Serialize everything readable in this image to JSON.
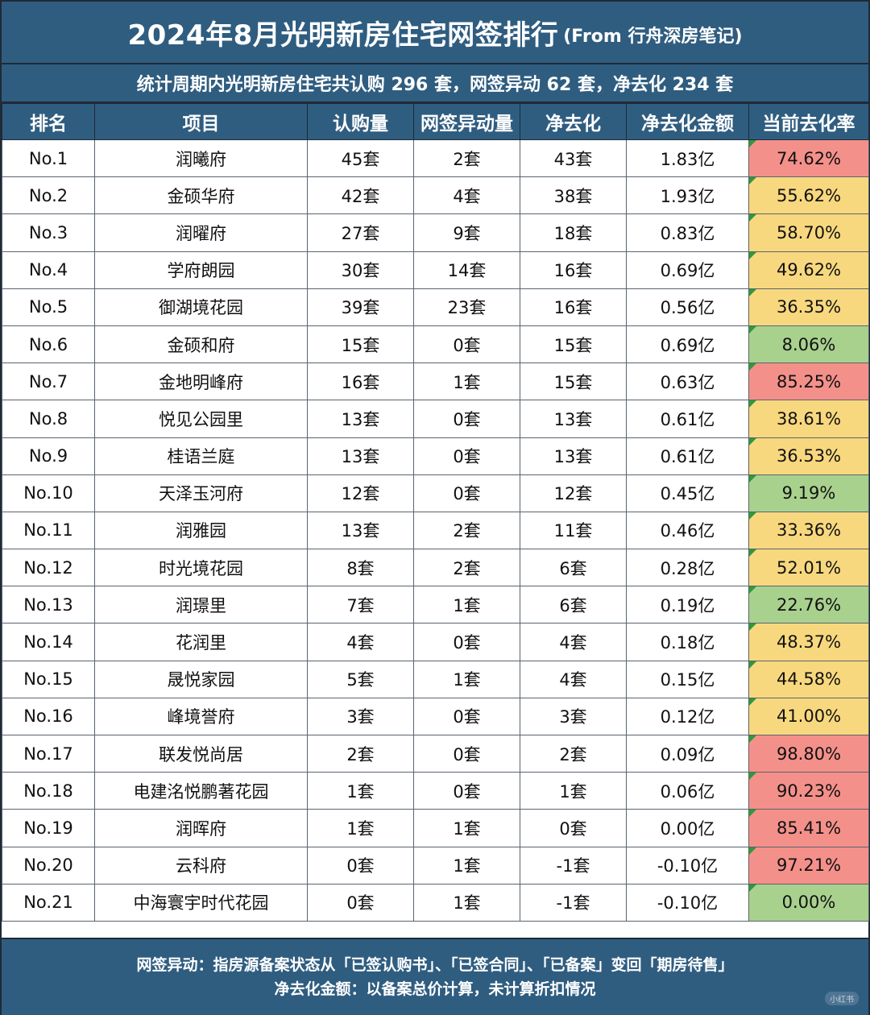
{
  "title": "2024年8月光明新房住宅网签排行",
  "subtitle": "(From 行舟深房笔记)",
  "summary": "统计周期内光明新房住宅共认购 296 套，网签异动 62 套，净去化 234 套",
  "columns": [
    "排名",
    "项目",
    "认购量",
    "网签异动量",
    "净去化",
    "净去化金额",
    "当前去化率"
  ],
  "colors": {
    "red": "#f4908a",
    "yellow": "#f8d87e",
    "green": "#a9d18e",
    "header": "#2f5d80"
  },
  "rows": [
    {
      "rank": "No.1",
      "project": "润曦府",
      "subscribed": "45套",
      "change": "2套",
      "net": "43套",
      "amount": "1.83亿",
      "rate": "74.62%",
      "level": "red"
    },
    {
      "rank": "No.2",
      "project": "金硕华府",
      "subscribed": "42套",
      "change": "4套",
      "net": "38套",
      "amount": "1.93亿",
      "rate": "55.62%",
      "level": "yellow"
    },
    {
      "rank": "No.3",
      "project": "润曜府",
      "subscribed": "27套",
      "change": "9套",
      "net": "18套",
      "amount": "0.83亿",
      "rate": "58.70%",
      "level": "yellow"
    },
    {
      "rank": "No.4",
      "project": "学府朗园",
      "subscribed": "30套",
      "change": "14套",
      "net": "16套",
      "amount": "0.69亿",
      "rate": "49.62%",
      "level": "yellow"
    },
    {
      "rank": "No.5",
      "project": "御湖境花园",
      "subscribed": "39套",
      "change": "23套",
      "net": "16套",
      "amount": "0.56亿",
      "rate": "36.35%",
      "level": "yellow"
    },
    {
      "rank": "No.6",
      "project": "金硕和府",
      "subscribed": "15套",
      "change": "0套",
      "net": "15套",
      "amount": "0.69亿",
      "rate": "8.06%",
      "level": "green"
    },
    {
      "rank": "No.7",
      "project": "金地明峰府",
      "subscribed": "16套",
      "change": "1套",
      "net": "15套",
      "amount": "0.63亿",
      "rate": "85.25%",
      "level": "red"
    },
    {
      "rank": "No.8",
      "project": "悦见公园里",
      "subscribed": "13套",
      "change": "0套",
      "net": "13套",
      "amount": "0.61亿",
      "rate": "38.61%",
      "level": "yellow"
    },
    {
      "rank": "No.9",
      "project": "桂语兰庭",
      "subscribed": "13套",
      "change": "0套",
      "net": "13套",
      "amount": "0.61亿",
      "rate": "36.53%",
      "level": "yellow"
    },
    {
      "rank": "No.10",
      "project": "天泽玉河府",
      "subscribed": "12套",
      "change": "0套",
      "net": "12套",
      "amount": "0.45亿",
      "rate": "9.19%",
      "level": "green"
    },
    {
      "rank": "No.11",
      "project": "润雅园",
      "subscribed": "13套",
      "change": "2套",
      "net": "11套",
      "amount": "0.46亿",
      "rate": "33.36%",
      "level": "yellow"
    },
    {
      "rank": "No.12",
      "project": "时光境花园",
      "subscribed": "8套",
      "change": "2套",
      "net": "6套",
      "amount": "0.28亿",
      "rate": "52.01%",
      "level": "yellow"
    },
    {
      "rank": "No.13",
      "project": "润璟里",
      "subscribed": "7套",
      "change": "1套",
      "net": "6套",
      "amount": "0.19亿",
      "rate": "22.76%",
      "level": "green"
    },
    {
      "rank": "No.14",
      "project": "花润里",
      "subscribed": "4套",
      "change": "0套",
      "net": "4套",
      "amount": "0.18亿",
      "rate": "48.37%",
      "level": "yellow"
    },
    {
      "rank": "No.15",
      "project": "晟悦家园",
      "subscribed": "5套",
      "change": "1套",
      "net": "4套",
      "amount": "0.15亿",
      "rate": "44.58%",
      "level": "yellow"
    },
    {
      "rank": "No.16",
      "project": "峰境誉府",
      "subscribed": "3套",
      "change": "0套",
      "net": "3套",
      "amount": "0.12亿",
      "rate": "41.00%",
      "level": "yellow"
    },
    {
      "rank": "No.17",
      "project": "联发悦尚居",
      "subscribed": "2套",
      "change": "0套",
      "net": "2套",
      "amount": "0.09亿",
      "rate": "98.80%",
      "level": "red"
    },
    {
      "rank": "No.18",
      "project": "电建洺悦鹏著花园",
      "subscribed": "1套",
      "change": "0套",
      "net": "1套",
      "amount": "0.06亿",
      "rate": "90.23%",
      "level": "red"
    },
    {
      "rank": "No.19",
      "project": "润晖府",
      "subscribed": "1套",
      "change": "1套",
      "net": "0套",
      "amount": "0.00亿",
      "rate": "85.41%",
      "level": "red"
    },
    {
      "rank": "No.20",
      "project": "云科府",
      "subscribed": "0套",
      "change": "1套",
      "net": "-1套",
      "amount": "-0.10亿",
      "rate": "97.21%",
      "level": "red"
    },
    {
      "rank": "No.21",
      "project": "中海寰宇时代花园",
      "subscribed": "0套",
      "change": "1套",
      "net": "-1套",
      "amount": "-0.10亿",
      "rate": "0.00%",
      "level": "green"
    }
  ],
  "footer": {
    "line1": "网签异动：指房源备案状态从「已签认购书」、「已签合同」、「已备案」变回「期房待售」",
    "line2": "净去化金额：以备案总价计算，未计算折扣情况"
  },
  "watermark": "小红书"
}
